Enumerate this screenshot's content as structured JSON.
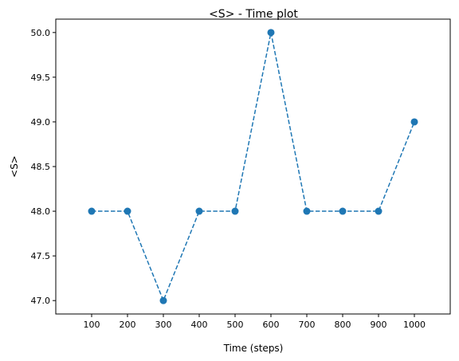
{
  "chart_data": {
    "type": "line",
    "title": "<S> - Time plot",
    "xlabel": "Time (steps)",
    "ylabel": "<S>",
    "x": [
      100,
      200,
      300,
      400,
      500,
      600,
      700,
      800,
      900,
      1000
    ],
    "series": [
      {
        "values": [
          48.0,
          48.0,
          47.0,
          48.0,
          48.0,
          50.0,
          48.0,
          48.0,
          48.0,
          49.0
        ],
        "line_style": "dashed",
        "marker": "circle",
        "color": "#1f77b4"
      }
    ],
    "x_ticks": [
      "100",
      "200",
      "300",
      "400",
      "500",
      "600",
      "700",
      "800",
      "900",
      "1000"
    ],
    "y_ticks": [
      "47.0",
      "47.5",
      "48.0",
      "48.5",
      "49.0",
      "49.5",
      "50.0"
    ],
    "xlim": [
      0,
      1100
    ],
    "ylim": [
      46.85,
      50.15
    ],
    "grid": false,
    "legend": "none"
  }
}
